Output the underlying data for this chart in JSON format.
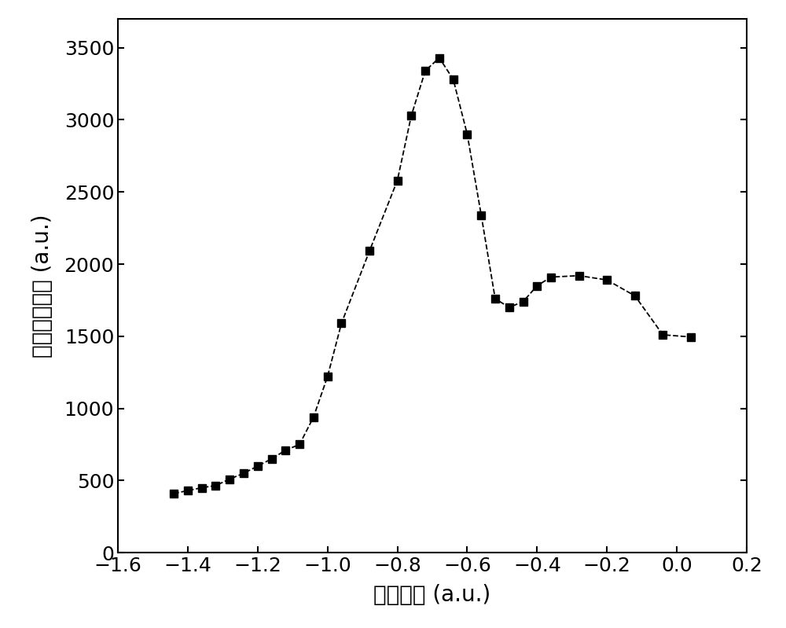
{
  "x": [
    -1.44,
    -1.4,
    -1.36,
    -1.32,
    -1.28,
    -1.24,
    -1.2,
    -1.16,
    -1.12,
    -1.08,
    -1.04,
    -1.0,
    -0.96,
    -0.88,
    -0.8,
    -0.76,
    -0.72,
    -0.68,
    -0.64,
    -0.6,
    -0.56,
    -0.52,
    -0.48,
    -0.44,
    -0.4,
    -0.36,
    -0.28,
    -0.2,
    -0.12,
    -0.04,
    0.04
  ],
  "y": [
    410,
    430,
    450,
    465,
    510,
    550,
    600,
    650,
    710,
    750,
    940,
    1220,
    1590,
    2090,
    2580,
    3030,
    3340,
    3430,
    3280,
    2900,
    2340,
    1760,
    1700,
    1740,
    1850,
    1910,
    1920,
    1890,
    1780,
    1510,
    1495
  ],
  "xlabel": "微波功率 (a.u.)",
  "ylabel": "频率误差信号 (a.u.)",
  "xlim": [
    -1.6,
    0.2
  ],
  "ylim": [
    0,
    3700
  ],
  "xticks": [
    -1.6,
    -1.4,
    -1.2,
    -1.0,
    -0.8,
    -0.6,
    -0.4,
    -0.2,
    0.0,
    0.2
  ],
  "yticks": [
    0,
    500,
    1000,
    1500,
    2000,
    2500,
    3000,
    3500
  ],
  "marker": "s",
  "marker_color": "black",
  "line_style": "--",
  "line_color": "black",
  "marker_size": 7,
  "background_color": "#ffffff",
  "xlabel_fontsize": 20,
  "ylabel_fontsize": 20,
  "tick_fontsize": 18
}
